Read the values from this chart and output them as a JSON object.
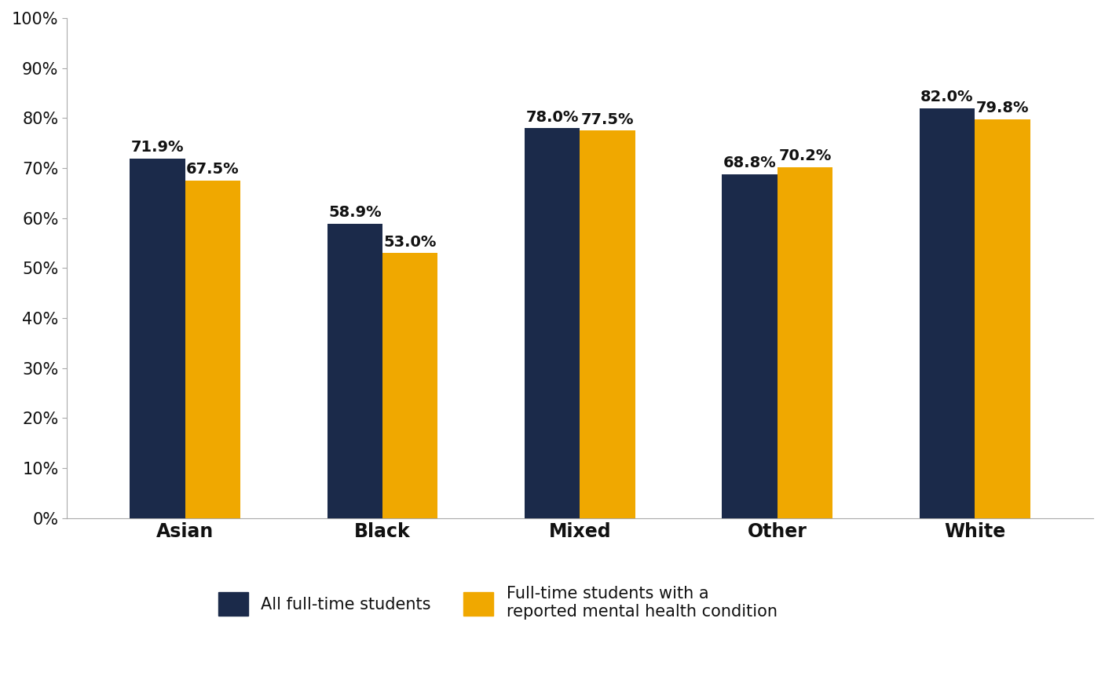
{
  "categories": [
    "Asian",
    "Black",
    "Mixed",
    "Other",
    "White"
  ],
  "series": {
    "all_students": [
      71.9,
      58.9,
      78.0,
      68.8,
      82.0
    ],
    "mental_health": [
      67.5,
      53.0,
      77.5,
      70.2,
      79.8
    ]
  },
  "colors": {
    "all_students": "#1b2a4a",
    "mental_health": "#f0a800"
  },
  "legend_labels": {
    "all_students": "All full-time students",
    "mental_health": "Full-time students with a\nreported mental health condition"
  },
  "ylim": [
    0,
    100
  ],
  "yticks": [
    0,
    10,
    20,
    30,
    40,
    50,
    60,
    70,
    80,
    90,
    100
  ],
  "ytick_labels": [
    "0%",
    "10%",
    "20%",
    "30%",
    "40%",
    "50%",
    "60%",
    "70%",
    "80%",
    "90%",
    "100%"
  ],
  "bar_width": 0.28,
  "tick_fontsize": 15,
  "legend_fontsize": 15,
  "background_color": "#ffffff",
  "value_label_fontsize": 14
}
